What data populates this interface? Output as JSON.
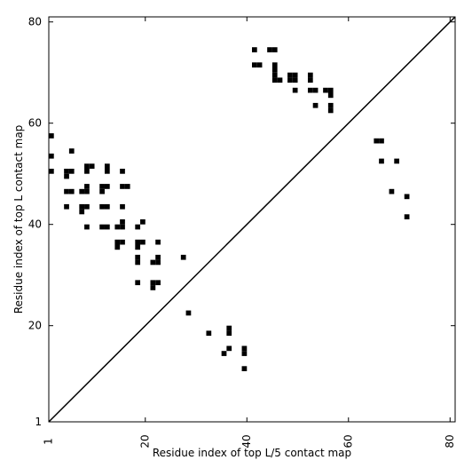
{
  "chart_data": {
    "type": "scatter",
    "marker": "square",
    "xlabel": "Residue index of top L/5 contact map",
    "ylabel": "Residue index of top L contact map",
    "xlim": [
      1,
      81
    ],
    "ylim": [
      1,
      81
    ],
    "xticks": [
      1,
      20,
      40,
      60,
      80
    ],
    "yticks": [
      1,
      20,
      40,
      60,
      80
    ],
    "xtick_labels": [
      "1",
      "20",
      "40",
      "60",
      "80"
    ],
    "ytick_labels": [
      "1",
      "20",
      "40",
      "60",
      "80"
    ],
    "diagonal_line": true,
    "grid": false,
    "colors": {
      "marker": "#000000",
      "axis": "#000000",
      "background": "#ffffff"
    },
    "points": [
      [
        2,
        58
      ],
      [
        2,
        54
      ],
      [
        2,
        51
      ],
      [
        6,
        55
      ],
      [
        5,
        51
      ],
      [
        5,
        50
      ],
      [
        6,
        51
      ],
      [
        9,
        52
      ],
      [
        10,
        52
      ],
      [
        9,
        51
      ],
      [
        13,
        52
      ],
      [
        13,
        51
      ],
      [
        16,
        51
      ],
      [
        5,
        47
      ],
      [
        6,
        47
      ],
      [
        8,
        47
      ],
      [
        9,
        47
      ],
      [
        9,
        48
      ],
      [
        12,
        48
      ],
      [
        12,
        47
      ],
      [
        13,
        48
      ],
      [
        16,
        48
      ],
      [
        17,
        48
      ],
      [
        5,
        44
      ],
      [
        8,
        44
      ],
      [
        8,
        43
      ],
      [
        9,
        44
      ],
      [
        9,
        40
      ],
      [
        12,
        44
      ],
      [
        13,
        44
      ],
      [
        16,
        44
      ],
      [
        12,
        40
      ],
      [
        13,
        40
      ],
      [
        15,
        40
      ],
      [
        16,
        40
      ],
      [
        16,
        41
      ],
      [
        20,
        41
      ],
      [
        19,
        40
      ],
      [
        15,
        37
      ],
      [
        15,
        36
      ],
      [
        16,
        37
      ],
      [
        19,
        37
      ],
      [
        19,
        36
      ],
      [
        20,
        37
      ],
      [
        23,
        37
      ],
      [
        19,
        34
      ],
      [
        19,
        33
      ],
      [
        22,
        33
      ],
      [
        23,
        33
      ],
      [
        23,
        34
      ],
      [
        28,
        34
      ],
      [
        19,
        29
      ],
      [
        22,
        29
      ],
      [
        22,
        28
      ],
      [
        23,
        29
      ],
      [
        29,
        23
      ],
      [
        33,
        19
      ],
      [
        37,
        20
      ],
      [
        37,
        19
      ],
      [
        36,
        15
      ],
      [
        37,
        16
      ],
      [
        40,
        16
      ],
      [
        40,
        15
      ],
      [
        40,
        12
      ],
      [
        42,
        75
      ],
      [
        45,
        75
      ],
      [
        46,
        75
      ],
      [
        42,
        72
      ],
      [
        43,
        72
      ],
      [
        46,
        72
      ],
      [
        46,
        71
      ],
      [
        46,
        70
      ],
      [
        46,
        69
      ],
      [
        47,
        69
      ],
      [
        49,
        70
      ],
      [
        50,
        70
      ],
      [
        49,
        69
      ],
      [
        50,
        69
      ],
      [
        50,
        67
      ],
      [
        53,
        70
      ],
      [
        53,
        69
      ],
      [
        53,
        67
      ],
      [
        54,
        67
      ],
      [
        56,
        67
      ],
      [
        57,
        67
      ],
      [
        57,
        66
      ],
      [
        54,
        64
      ],
      [
        57,
        64
      ],
      [
        57,
        63
      ],
      [
        66,
        57
      ],
      [
        67,
        57
      ],
      [
        67,
        53
      ],
      [
        70,
        53
      ],
      [
        69,
        47
      ],
      [
        72,
        46
      ],
      [
        72,
        42
      ]
    ]
  }
}
